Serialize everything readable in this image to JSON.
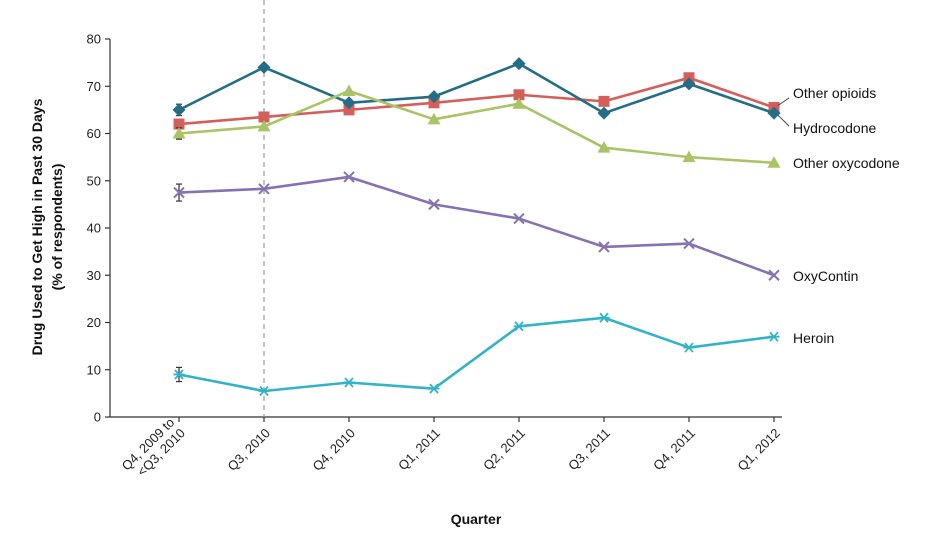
{
  "chart_data": {
    "type": "line",
    "ylabel_line1": "Drug Used to Get High in Past 30 Days",
    "ylabel_line2": "(% of respondents)",
    "xlabel": "Quarter",
    "ylim": [
      0,
      80
    ],
    "yticks": [
      0,
      10,
      20,
      30,
      40,
      50,
      60,
      70,
      80
    ],
    "categories": [
      [
        "Q4, 2009 to",
        "<Q3, 2010"
      ],
      [
        "Q3, 2010"
      ],
      [
        "Q4, 2010"
      ],
      [
        "Q1, 2011"
      ],
      [
        "Q2, 2011"
      ],
      [
        "Q3, 2011"
      ],
      [
        "Q4, 2011"
      ],
      [
        "Q1, 2012"
      ]
    ],
    "reference_line_at": "Q3, 2010",
    "grid": false,
    "series": [
      {
        "name": "Other opioids",
        "color": "#d45f5a",
        "marker": "square",
        "values": [
          62,
          63.5,
          65,
          66.5,
          68.2,
          66.8,
          71.8,
          65.5
        ],
        "error_first": 0
      },
      {
        "name": "Hydrocodone",
        "color": "#236e84",
        "marker": "diamond",
        "values": [
          65,
          74,
          66.5,
          67.8,
          74.8,
          64.3,
          70.5,
          64.3
        ],
        "error_first": 1.2
      },
      {
        "name": "Other oxycodone",
        "color": "#a8c465",
        "marker": "triangle",
        "values": [
          60,
          61.5,
          69,
          63,
          66.3,
          57,
          55,
          53.8
        ],
        "error_first": 1.2
      },
      {
        "name": "OxyContin",
        "color": "#8672b0",
        "marker": "x",
        "values": [
          47.5,
          48.3,
          50.8,
          45,
          42,
          36,
          36.7,
          30
        ],
        "error_first": 1.8
      },
      {
        "name": "Heroin",
        "color": "#33b4c6",
        "marker": "asterisk",
        "values": [
          9,
          5.5,
          7.3,
          6,
          19.2,
          21,
          14.7,
          17
        ],
        "error_first": 1.5
      }
    ],
    "series_label_y": [
      93,
      128,
      163,
      276,
      338
    ]
  }
}
